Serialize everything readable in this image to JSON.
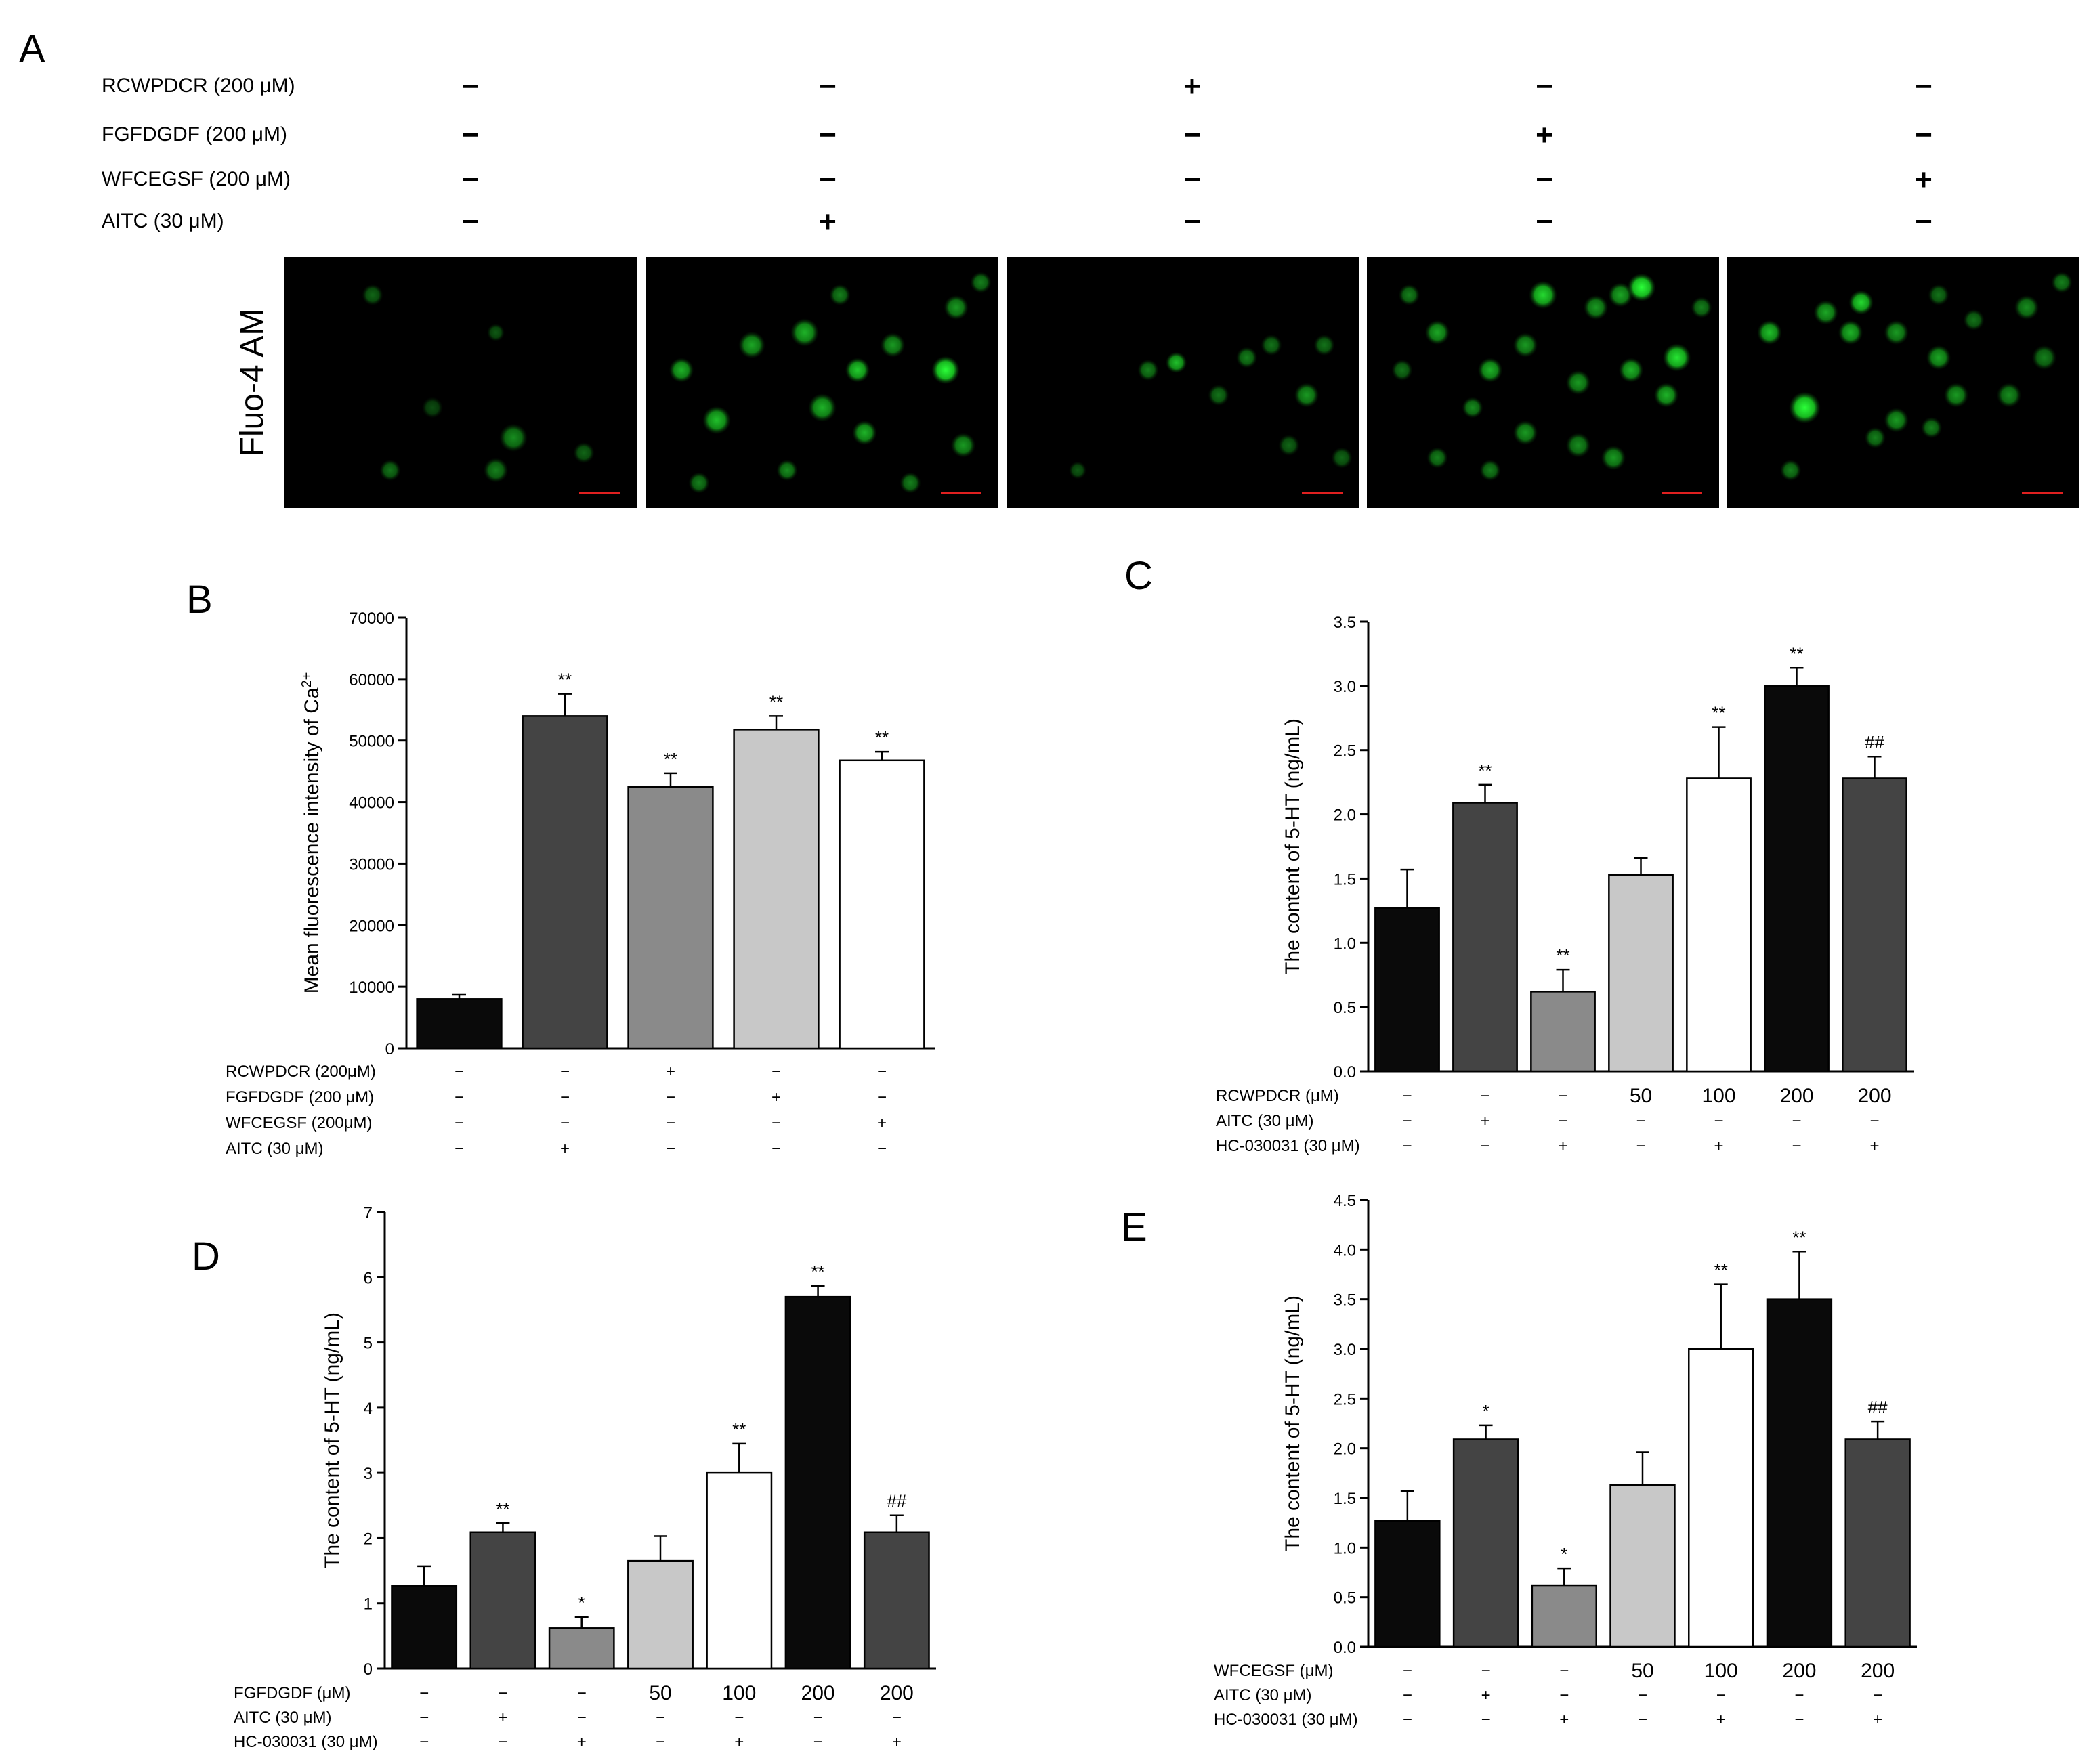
{
  "panel_a": {
    "letter": "A",
    "rows": [
      {
        "label": "RCWPDCR (200 μM)",
        "signs": [
          "−",
          "−",
          "+",
          "−",
          "−"
        ]
      },
      {
        "label": "FGFDGDF (200 μM)",
        "signs": [
          "−",
          "−",
          "−",
          "+",
          "−"
        ]
      },
      {
        "label": "WFCEGSF (200 μM)",
        "signs": [
          "−",
          "−",
          "−",
          "−",
          "+"
        ]
      },
      {
        "label": "AITC (30 μM)",
        "signs": [
          "−",
          "+",
          "−",
          "−",
          "−"
        ]
      }
    ],
    "image_row_label": "Fluo-4 AM",
    "images": [
      {
        "cells": [
          [
            0.25,
            0.15,
            0.03,
            0.4
          ],
          [
            0.6,
            0.3,
            0.025,
            0.35
          ],
          [
            0.65,
            0.72,
            0.04,
            0.55
          ],
          [
            0.6,
            0.85,
            0.035,
            0.5
          ],
          [
            0.3,
            0.85,
            0.03,
            0.45
          ],
          [
            0.85,
            0.78,
            0.03,
            0.4
          ],
          [
            0.42,
            0.6,
            0.03,
            0.3
          ]
        ]
      },
      {
        "cells": [
          [
            0.1,
            0.45,
            0.035,
            0.7
          ],
          [
            0.2,
            0.65,
            0.04,
            0.75
          ],
          [
            0.3,
            0.35,
            0.038,
            0.65
          ],
          [
            0.45,
            0.3,
            0.04,
            0.7
          ],
          [
            0.5,
            0.6,
            0.04,
            0.7
          ],
          [
            0.6,
            0.45,
            0.035,
            0.8
          ],
          [
            0.62,
            0.7,
            0.035,
            0.7
          ],
          [
            0.7,
            0.35,
            0.035,
            0.6
          ],
          [
            0.85,
            0.45,
            0.04,
            1.0
          ],
          [
            0.88,
            0.2,
            0.035,
            0.6
          ],
          [
            0.9,
            0.75,
            0.035,
            0.6
          ],
          [
            0.95,
            0.1,
            0.03,
            0.5
          ],
          [
            0.4,
            0.85,
            0.03,
            0.55
          ],
          [
            0.75,
            0.9,
            0.03,
            0.5
          ],
          [
            0.15,
            0.9,
            0.03,
            0.5
          ],
          [
            0.55,
            0.15,
            0.03,
            0.5
          ]
        ]
      },
      {
        "cells": [
          [
            0.4,
            0.45,
            0.03,
            0.5
          ],
          [
            0.48,
            0.42,
            0.03,
            0.75
          ],
          [
            0.6,
            0.55,
            0.03,
            0.45
          ],
          [
            0.68,
            0.4,
            0.03,
            0.5
          ],
          [
            0.75,
            0.35,
            0.03,
            0.45
          ],
          [
            0.85,
            0.55,
            0.035,
            0.6
          ],
          [
            0.9,
            0.35,
            0.03,
            0.45
          ],
          [
            0.2,
            0.85,
            0.025,
            0.35
          ],
          [
            0.95,
            0.8,
            0.03,
            0.4
          ],
          [
            0.8,
            0.75,
            0.03,
            0.4
          ]
        ]
      },
      {
        "cells": [
          [
            0.2,
            0.3,
            0.035,
            0.65
          ],
          [
            0.35,
            0.45,
            0.035,
            0.7
          ],
          [
            0.45,
            0.35,
            0.035,
            0.6
          ],
          [
            0.5,
            0.15,
            0.04,
            0.85
          ],
          [
            0.65,
            0.2,
            0.035,
            0.6
          ],
          [
            0.72,
            0.15,
            0.035,
            0.65
          ],
          [
            0.78,
            0.12,
            0.04,
            1.0
          ],
          [
            0.75,
            0.45,
            0.035,
            0.7
          ],
          [
            0.88,
            0.4,
            0.04,
            0.9
          ],
          [
            0.85,
            0.55,
            0.035,
            0.7
          ],
          [
            0.6,
            0.5,
            0.035,
            0.6
          ],
          [
            0.3,
            0.6,
            0.03,
            0.55
          ],
          [
            0.45,
            0.7,
            0.035,
            0.6
          ],
          [
            0.6,
            0.75,
            0.035,
            0.55
          ],
          [
            0.7,
            0.8,
            0.035,
            0.6
          ],
          [
            0.2,
            0.8,
            0.03,
            0.5
          ],
          [
            0.35,
            0.85,
            0.03,
            0.5
          ],
          [
            0.1,
            0.45,
            0.03,
            0.45
          ],
          [
            0.95,
            0.2,
            0.03,
            0.5
          ],
          [
            0.12,
            0.15,
            0.03,
            0.5
          ]
        ]
      },
      {
        "cells": [
          [
            0.12,
            0.3,
            0.035,
            0.75
          ],
          [
            0.28,
            0.22,
            0.035,
            0.65
          ],
          [
            0.35,
            0.3,
            0.035,
            0.7
          ],
          [
            0.38,
            0.18,
            0.035,
            0.85
          ],
          [
            0.22,
            0.6,
            0.045,
            1.0
          ],
          [
            0.48,
            0.3,
            0.035,
            0.6
          ],
          [
            0.6,
            0.4,
            0.035,
            0.65
          ],
          [
            0.65,
            0.55,
            0.035,
            0.6
          ],
          [
            0.58,
            0.68,
            0.03,
            0.5
          ],
          [
            0.48,
            0.65,
            0.035,
            0.6
          ],
          [
            0.8,
            0.55,
            0.035,
            0.55
          ],
          [
            0.9,
            0.4,
            0.035,
            0.5
          ],
          [
            0.85,
            0.2,
            0.035,
            0.55
          ],
          [
            0.95,
            0.1,
            0.03,
            0.5
          ],
          [
            0.42,
            0.72,
            0.03,
            0.5
          ],
          [
            0.18,
            0.85,
            0.03,
            0.5
          ],
          [
            0.7,
            0.25,
            0.03,
            0.45
          ],
          [
            0.6,
            0.15,
            0.03,
            0.45
          ]
        ]
      }
    ]
  },
  "chart_data": [
    {
      "panel": "B",
      "type": "bar",
      "ylabel": "Mean fluorescence intensity of Ca",
      "ylabel_sup": "2+",
      "ylim": [
        0,
        70000
      ],
      "yticks": [
        "0",
        "10000",
        "20000",
        "30000",
        "40000",
        "50000",
        "60000",
        "70000"
      ],
      "values": [
        8000,
        54000,
        42500,
        51800,
        46800
      ],
      "errors": [
        700,
        3600,
        2200,
        2200,
        1400
      ],
      "colors": [
        "#0a0a0a",
        "#444444",
        "#8a8a8a",
        "#c8c8c8",
        "#ffffff"
      ],
      "annotations": [
        "",
        "**",
        "**",
        "**",
        "**"
      ],
      "conditions": [
        {
          "label": "RCWPDCR (200μM)",
          "values": [
            "−",
            "−",
            "+",
            "−",
            "−"
          ]
        },
        {
          "label": "FGFDGDF (200 μM)",
          "values": [
            "−",
            "−",
            "−",
            "+",
            "−"
          ]
        },
        {
          "label": "WFCEGSF (200μM)",
          "values": [
            "−",
            "−",
            "−",
            "−",
            "+"
          ]
        },
        {
          "label": "AITC (30 μM)",
          "values": [
            "−",
            "+",
            "−",
            "−",
            "−"
          ]
        }
      ]
    },
    {
      "panel": "C",
      "type": "bar",
      "ylabel": "The content of 5-HT (ng/mL)",
      "ylim": [
        0,
        3.5
      ],
      "yticks": [
        "0.0",
        "0.5",
        "1.0",
        "1.5",
        "2.0",
        "2.5",
        "3.0",
        "3.5"
      ],
      "values": [
        1.27,
        2.09,
        0.62,
        1.53,
        2.28,
        3.0,
        2.28
      ],
      "errors": [
        0.3,
        0.14,
        0.17,
        0.13,
        0.4,
        0.14,
        0.17
      ],
      "colors": [
        "#0a0a0a",
        "#444444",
        "#8a8a8a",
        "#c8c8c8",
        "#ffffff",
        "#0a0a0a",
        "#444444"
      ],
      "annotations": [
        "",
        "**",
        "**",
        "",
        "**",
        "**",
        "##"
      ],
      "conditions": [
        {
          "label": "RCWPDCR (μM)",
          "values": [
            "−",
            "−",
            "−",
            "50",
            "100",
            "200",
            "200"
          ]
        },
        {
          "label": "AITC (30 μM)",
          "values": [
            "−",
            "+",
            "−",
            "−",
            "−",
            "−",
            "−"
          ]
        },
        {
          "label": "HC-030031 (30 μM)",
          "values": [
            "−",
            "−",
            "+",
            "−",
            "+",
            "−",
            "+"
          ]
        }
      ]
    },
    {
      "panel": "D",
      "type": "bar",
      "ylabel": "The content of 5-HT (ng/mL)",
      "ylim": [
        0,
        7
      ],
      "yticks": [
        "0",
        "1",
        "2",
        "3",
        "4",
        "5",
        "6",
        "7"
      ],
      "values": [
        1.27,
        2.09,
        0.62,
        1.65,
        3.0,
        5.7,
        2.09
      ],
      "errors": [
        0.3,
        0.14,
        0.17,
        0.38,
        0.45,
        0.17,
        0.26
      ],
      "colors": [
        "#0a0a0a",
        "#444444",
        "#8a8a8a",
        "#c8c8c8",
        "#ffffff",
        "#0a0a0a",
        "#444444"
      ],
      "annotations": [
        "",
        "**",
        "*",
        "",
        "**",
        "**",
        "##"
      ],
      "conditions": [
        {
          "label": "FGFDGDF (μM)",
          "values": [
            "−",
            "−",
            "−",
            "50",
            "100",
            "200",
            "200"
          ]
        },
        {
          "label": "AITC (30 μM)",
          "values": [
            "−",
            "+",
            "−",
            "−",
            "−",
            "−",
            "−"
          ]
        },
        {
          "label": "HC-030031 (30 μM)",
          "values": [
            "−",
            "−",
            "+",
            "−",
            "+",
            "−",
            "+"
          ]
        }
      ]
    },
    {
      "panel": "E",
      "type": "bar",
      "ylabel": "The content of 5-HT (ng/mL)",
      "ylim": [
        0,
        4.5
      ],
      "yticks": [
        "0.0",
        "0.5",
        "1.0",
        "1.5",
        "2.0",
        "2.5",
        "3.0",
        "3.5",
        "4.0",
        "4.5"
      ],
      "values": [
        1.27,
        2.09,
        0.62,
        1.63,
        3.0,
        3.5,
        2.09
      ],
      "errors": [
        0.3,
        0.14,
        0.17,
        0.33,
        0.65,
        0.48,
        0.18
      ],
      "colors": [
        "#0a0a0a",
        "#444444",
        "#8a8a8a",
        "#c8c8c8",
        "#ffffff",
        "#0a0a0a",
        "#444444"
      ],
      "annotations": [
        "",
        "*",
        "",
        "",
        "**",
        "**",
        "##"
      ],
      "below_annotations": [
        "",
        "",
        "*",
        "",
        "",
        "",
        ""
      ],
      "conditions": [
        {
          "label": "WFCEGSF (μM)",
          "values": [
            "−",
            "−",
            "−",
            "50",
            "100",
            "200",
            "200"
          ]
        },
        {
          "label": "AITC (30 μM)",
          "values": [
            "−",
            "+",
            "−",
            "−",
            "−",
            "−",
            "−"
          ]
        },
        {
          "label": "HC-030031 (30 μM)",
          "values": [
            "−",
            "−",
            "+",
            "−",
            "+",
            "−",
            "+"
          ]
        }
      ]
    }
  ]
}
